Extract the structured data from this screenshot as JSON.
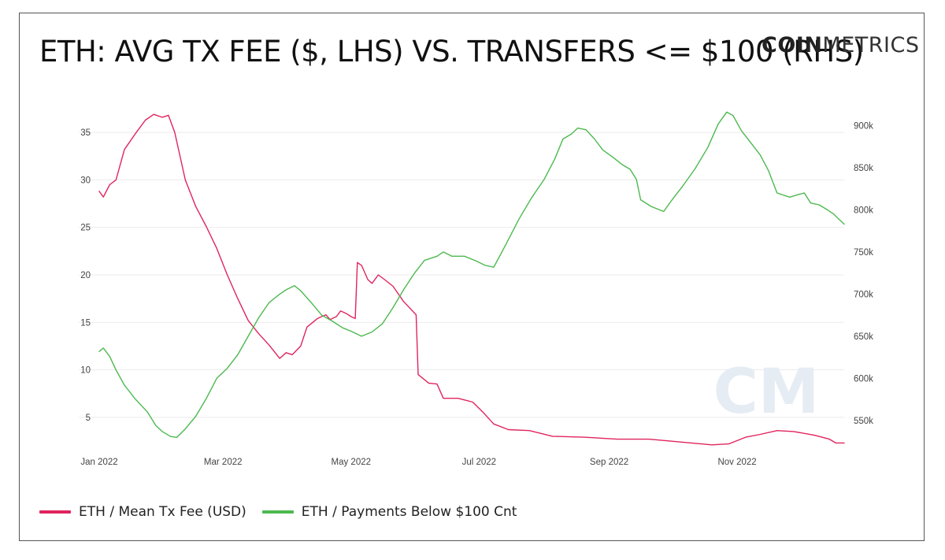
{
  "header": {
    "title": "ETH: AVG TX FEE ($, LHS) VS. TRANSFERS <= $100 (RHS)",
    "logo_bold": "COIN",
    "logo_light": "METRICS"
  },
  "chart_data": {
    "type": "line",
    "title": "ETH: AVG TX FEE ($, LHS) VS. TRANSFERS <= $100 (RHS)",
    "x_axis": {
      "type": "date",
      "range": [
        "2022-01-01",
        "2022-12-22"
      ],
      "tick_labels": [
        "Jan 2022",
        "Mar 2022",
        "May 2022",
        "Jul 2022",
        "Sep 2022",
        "Nov 2022"
      ],
      "tick_dates": [
        "2022-01-01",
        "2022-03-01",
        "2022-05-01",
        "2022-07-01",
        "2022-09-01",
        "2022-11-01"
      ]
    },
    "y_left": {
      "range": [
        2,
        37.5
      ],
      "ticks": [
        5,
        10,
        15,
        20,
        25,
        30,
        35
      ],
      "tick_labels": [
        "5",
        "10",
        "15",
        "20",
        "25",
        "30",
        "35"
      ]
    },
    "y_right": {
      "range": [
        520000,
        920000
      ],
      "ticks": [
        550000,
        600000,
        650000,
        700000,
        750000,
        800000,
        850000,
        900000
      ],
      "tick_labels": [
        "550k",
        "600k",
        "650k",
        "700k",
        "750k",
        "800k",
        "850k",
        "900k"
      ]
    },
    "grid": "horizontal",
    "legend_position": "bottom-left",
    "series": [
      {
        "name": "ETH / Mean Tx Fee (USD)",
        "axis": "left",
        "color": "#e0245e",
        "points": [
          [
            "2022-01-01",
            28.8
          ],
          [
            "2022-01-03",
            28.2
          ],
          [
            "2022-01-06",
            29.5
          ],
          [
            "2022-01-09",
            30.0
          ],
          [
            "2022-01-13",
            33.2
          ],
          [
            "2022-01-18",
            34.8
          ],
          [
            "2022-01-23",
            36.3
          ],
          [
            "2022-01-27",
            36.9
          ],
          [
            "2022-01-31",
            36.6
          ],
          [
            "2022-02-03",
            36.8
          ],
          [
            "2022-02-06",
            35.0
          ],
          [
            "2022-02-11",
            30.0
          ],
          [
            "2022-02-16",
            27.2
          ],
          [
            "2022-02-21",
            25.1
          ],
          [
            "2022-02-26",
            22.8
          ],
          [
            "2022-03-03",
            20.0
          ],
          [
            "2022-03-08",
            17.5
          ],
          [
            "2022-03-13",
            15.2
          ],
          [
            "2022-03-18",
            13.8
          ],
          [
            "2022-03-23",
            12.6
          ],
          [
            "2022-03-28",
            11.2
          ],
          [
            "2022-03-31",
            11.8
          ],
          [
            "2022-04-03",
            11.6
          ],
          [
            "2022-04-07",
            12.5
          ],
          [
            "2022-04-10",
            14.5
          ],
          [
            "2022-04-15",
            15.4
          ],
          [
            "2022-04-19",
            15.8
          ],
          [
            "2022-04-21",
            15.3
          ],
          [
            "2022-04-24",
            15.6
          ],
          [
            "2022-04-26",
            16.2
          ],
          [
            "2022-04-29",
            15.9
          ],
          [
            "2022-05-01",
            15.6
          ],
          [
            "2022-05-03",
            15.4
          ],
          [
            "2022-05-04",
            21.3
          ],
          [
            "2022-05-06",
            21.0
          ],
          [
            "2022-05-09",
            19.5
          ],
          [
            "2022-05-11",
            19.1
          ],
          [
            "2022-05-14",
            20.0
          ],
          [
            "2022-05-17",
            19.5
          ],
          [
            "2022-05-21",
            18.8
          ],
          [
            "2022-05-26",
            17.2
          ],
          [
            "2022-06-01",
            15.8
          ],
          [
            "2022-06-02",
            9.5
          ],
          [
            "2022-06-07",
            8.6
          ],
          [
            "2022-06-11",
            8.5
          ],
          [
            "2022-06-14",
            7.0
          ],
          [
            "2022-06-21",
            7.0
          ],
          [
            "2022-06-28",
            6.6
          ],
          [
            "2022-07-03",
            5.5
          ],
          [
            "2022-07-08",
            4.3
          ],
          [
            "2022-07-15",
            3.7
          ],
          [
            "2022-07-25",
            3.6
          ],
          [
            "2022-08-05",
            3.0
          ],
          [
            "2022-08-20",
            2.9
          ],
          [
            "2022-09-05",
            2.7
          ],
          [
            "2022-09-20",
            2.7
          ],
          [
            "2022-10-05",
            2.4
          ],
          [
            "2022-10-20",
            2.1
          ],
          [
            "2022-10-28",
            2.2
          ],
          [
            "2022-11-05",
            2.9
          ],
          [
            "2022-11-12",
            3.2
          ],
          [
            "2022-11-20",
            3.6
          ],
          [
            "2022-11-28",
            3.5
          ],
          [
            "2022-12-08",
            3.1
          ],
          [
            "2022-12-15",
            2.7
          ],
          [
            "2022-12-18",
            2.3
          ],
          [
            "2022-12-22",
            2.3
          ]
        ]
      },
      {
        "name": "ETH / Payments Below $100 Cnt",
        "axis": "right",
        "color": "#4cb94f",
        "points": [
          [
            "2022-01-01",
            632000
          ],
          [
            "2022-01-03",
            636000
          ],
          [
            "2022-01-06",
            626000
          ],
          [
            "2022-01-09",
            610000
          ],
          [
            "2022-01-13",
            592000
          ],
          [
            "2022-01-18",
            576000
          ],
          [
            "2022-01-24",
            560000
          ],
          [
            "2022-01-28",
            544000
          ],
          [
            "2022-01-31",
            537000
          ],
          [
            "2022-02-04",
            531000
          ],
          [
            "2022-02-07",
            530000
          ],
          [
            "2022-02-11",
            540000
          ],
          [
            "2022-02-16",
            555000
          ],
          [
            "2022-02-21",
            576000
          ],
          [
            "2022-02-26",
            600000
          ],
          [
            "2022-03-03",
            612000
          ],
          [
            "2022-03-08",
            628000
          ],
          [
            "2022-03-13",
            650000
          ],
          [
            "2022-03-18",
            672000
          ],
          [
            "2022-03-23",
            690000
          ],
          [
            "2022-03-28",
            700000
          ],
          [
            "2022-03-31",
            705000
          ],
          [
            "2022-04-04",
            710000
          ],
          [
            "2022-04-07",
            704000
          ],
          [
            "2022-04-12",
            690000
          ],
          [
            "2022-04-17",
            675000
          ],
          [
            "2022-04-22",
            668000
          ],
          [
            "2022-04-27",
            660000
          ],
          [
            "2022-05-01",
            656000
          ],
          [
            "2022-05-06",
            650000
          ],
          [
            "2022-05-11",
            655000
          ],
          [
            "2022-05-16",
            665000
          ],
          [
            "2022-05-21",
            684000
          ],
          [
            "2022-05-26",
            705000
          ],
          [
            "2022-05-31",
            724000
          ],
          [
            "2022-06-05",
            740000
          ],
          [
            "2022-06-11",
            745000
          ],
          [
            "2022-06-14",
            750000
          ],
          [
            "2022-06-18",
            745000
          ],
          [
            "2022-06-24",
            745000
          ],
          [
            "2022-06-29",
            740000
          ],
          [
            "2022-07-04",
            734000
          ],
          [
            "2022-07-08",
            732000
          ],
          [
            "2022-07-14",
            760000
          ],
          [
            "2022-07-20",
            789000
          ],
          [
            "2022-07-26",
            814000
          ],
          [
            "2022-08-01",
            836000
          ],
          [
            "2022-08-06",
            860000
          ],
          [
            "2022-08-10",
            884000
          ],
          [
            "2022-08-14",
            890000
          ],
          [
            "2022-08-17",
            897000
          ],
          [
            "2022-08-21",
            895000
          ],
          [
            "2022-08-25",
            884000
          ],
          [
            "2022-08-29",
            871000
          ],
          [
            "2022-09-03",
            862000
          ],
          [
            "2022-09-07",
            854000
          ],
          [
            "2022-09-11",
            848000
          ],
          [
            "2022-09-14",
            836000
          ],
          [
            "2022-09-16",
            812000
          ],
          [
            "2022-09-21",
            804000
          ],
          [
            "2022-09-27",
            798000
          ],
          [
            "2022-10-01",
            812000
          ],
          [
            "2022-10-06",
            828000
          ],
          [
            "2022-10-12",
            849000
          ],
          [
            "2022-10-18",
            874000
          ],
          [
            "2022-10-23",
            902000
          ],
          [
            "2022-10-27",
            916000
          ],
          [
            "2022-10-30",
            912000
          ],
          [
            "2022-11-03",
            894000
          ],
          [
            "2022-11-08",
            878000
          ],
          [
            "2022-11-12",
            865000
          ],
          [
            "2022-11-16",
            846000
          ],
          [
            "2022-11-20",
            820000
          ],
          [
            "2022-11-26",
            815000
          ],
          [
            "2022-11-30",
            818000
          ],
          [
            "2022-12-03",
            820000
          ],
          [
            "2022-12-06",
            808000
          ],
          [
            "2022-12-10",
            806000
          ],
          [
            "2022-12-14",
            800000
          ],
          [
            "2022-12-17",
            795000
          ],
          [
            "2022-12-19",
            790000
          ],
          [
            "2022-12-22",
            783000
          ]
        ]
      }
    ]
  },
  "legend": {
    "items": [
      {
        "label": "ETH / Mean Tx Fee (USD)",
        "color": "#e0245e"
      },
      {
        "label": "ETH / Payments Below $100 Cnt",
        "color": "#4cb94f"
      }
    ]
  },
  "watermark": {
    "text": "CM"
  }
}
